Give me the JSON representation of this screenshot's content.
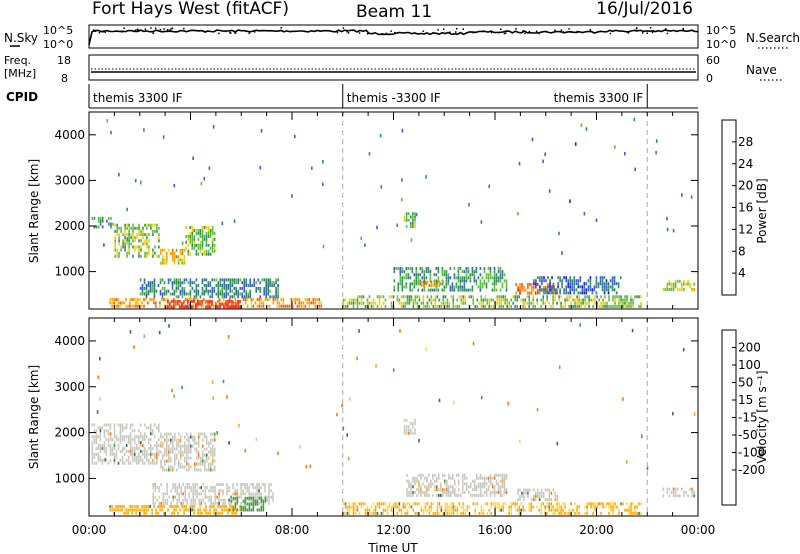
{
  "header": {
    "title": "Fort Hays West (fitACF)",
    "beam": "Beam 11",
    "date": "16/Jul/2016"
  },
  "strips": {
    "nsky_label": "N.Sky",
    "nsky_ticks": [
      "10^5",
      "10^0"
    ],
    "nsearch_label": "N.Search",
    "nsearch_ticks": [
      "10^5",
      "10^0"
    ],
    "freq_label_1": "Freq.",
    "freq_label_2": "[MHz]",
    "freq_ticks": [
      "18",
      "8"
    ],
    "nave_label": "Nave",
    "nave_ticks": [
      "60",
      "0"
    ],
    "cpid_label": "CPID",
    "cpid_segments": [
      {
        "start_hour": 0,
        "end_hour": 10,
        "text": "themis 3300 IF"
      },
      {
        "start_hour": 10,
        "end_hour": 22,
        "text": "themis -3300 IF"
      },
      {
        "start_hour": 22,
        "end_hour": 24,
        "text": "themis 3300 IF"
      }
    ]
  },
  "chart_data": [
    {
      "type": "heatmap",
      "panel": "power",
      "xlabel": "",
      "ylabel": "Slant Range [km]",
      "xlim": [
        0,
        24
      ],
      "ylim": [
        180,
        4500
      ],
      "yticks": [
        "1000",
        "2000",
        "3000",
        "4000"
      ],
      "colorbar_label": "Power [dB]",
      "colorbar_ticks": [
        "4",
        "8",
        "12",
        "16",
        "20",
        "24",
        "28"
      ],
      "colorbar_range": [
        0,
        32
      ],
      "colorbar_colors": [
        "#1a1aff",
        "#3a5fcf",
        "#2f8f5a",
        "#5cbf3a",
        "#f0d000",
        "#ff9a00",
        "#ff5a00",
        "#ff1a00"
      ],
      "regions": [
        {
          "t": [
            0.1,
            1.0
          ],
          "r": [
            1950,
            2200
          ],
          "value": 10
        },
        {
          "t": [
            1.0,
            2.8
          ],
          "r": [
            1300,
            2050
          ],
          "value": 14
        },
        {
          "t": [
            2.8,
            3.8
          ],
          "r": [
            1150,
            1500
          ],
          "value": 20
        },
        {
          "t": [
            3.8,
            5.0
          ],
          "r": [
            1350,
            2000
          ],
          "value": 13
        },
        {
          "t": [
            0.8,
            9.2
          ],
          "r": [
            200,
            420
          ],
          "value": 22
        },
        {
          "t": [
            3.0,
            6.0
          ],
          "r": [
            200,
            380
          ],
          "value": 30
        },
        {
          "t": [
            2.0,
            7.5
          ],
          "r": [
            420,
            850
          ],
          "value": 9
        },
        {
          "t": [
            12.4,
            12.9
          ],
          "r": [
            1950,
            2300
          ],
          "value": 13
        },
        {
          "t": [
            12.0,
            16.5
          ],
          "r": [
            560,
            1100
          ],
          "value": 11
        },
        {
          "t": [
            13.0,
            14.0
          ],
          "r": [
            650,
            800
          ],
          "value": 22
        },
        {
          "t": [
            10.0,
            21.8
          ],
          "r": [
            200,
            480
          ],
          "value": 15
        },
        {
          "t": [
            16.8,
            18.5
          ],
          "r": [
            500,
            750
          ],
          "value": 24
        },
        {
          "t": [
            17.5,
            21.0
          ],
          "r": [
            500,
            900
          ],
          "value": 7
        },
        {
          "t": [
            22.6,
            23.9
          ],
          "r": [
            580,
            820
          ],
          "value": 17
        }
      ],
      "scatter_count": 70
    },
    {
      "type": "heatmap",
      "panel": "velocity",
      "xlabel": "Time UT",
      "ylabel": "Slant Range [km]",
      "xlim": [
        0,
        24
      ],
      "ylim": [
        180,
        4500
      ],
      "xticks": [
        "00:00",
        "04:00",
        "08:00",
        "12:00",
        "16:00",
        "20:00",
        "00:00"
      ],
      "yticks": [
        "1000",
        "2000",
        "3000",
        "4000"
      ],
      "colorbar_label": "Velocity [m s⁻¹]",
      "colorbar_ticks": [
        "200",
        "100",
        "50",
        "15",
        "-15",
        "-50",
        "-100",
        "-200"
      ],
      "colorbar_colors": [
        "#1a2fd0",
        "#2f6f5a",
        "#3fa03f",
        "#6cd23c",
        "#c8c8c0",
        "#ffd84a",
        "#ffaa00",
        "#ff7a00",
        "#ff3000",
        "#e00000"
      ],
      "regions": [
        {
          "t": [
            0.1,
            2.8
          ],
          "r": [
            1300,
            2200
          ],
          "value": 0
        },
        {
          "t": [
            2.8,
            5.0
          ],
          "r": [
            1150,
            2000
          ],
          "value": 0
        },
        {
          "t": [
            0.8,
            6.0
          ],
          "r": [
            200,
            420
          ],
          "value": -40
        },
        {
          "t": [
            2.5,
            7.3
          ],
          "r": [
            420,
            900
          ],
          "value": 0
        },
        {
          "t": [
            5.5,
            7.0
          ],
          "r": [
            280,
            600
          ],
          "value": 60
        },
        {
          "t": [
            12.4,
            12.9
          ],
          "r": [
            1950,
            2300
          ],
          "value": 0
        },
        {
          "t": [
            12.5,
            16.5
          ],
          "r": [
            600,
            1100
          ],
          "value": 0
        },
        {
          "t": [
            10.0,
            21.8
          ],
          "r": [
            200,
            480
          ],
          "value": -30
        },
        {
          "t": [
            16.8,
            18.5
          ],
          "r": [
            500,
            780
          ],
          "value": 0
        },
        {
          "t": [
            22.6,
            23.9
          ],
          "r": [
            580,
            800
          ],
          "value": 0
        }
      ],
      "scatter_count": 60
    }
  ]
}
